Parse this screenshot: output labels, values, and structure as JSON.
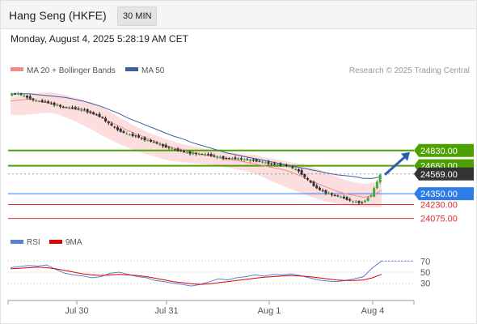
{
  "header": {
    "title": "Hang Seng (HKFE)",
    "interval": "30 MIN",
    "timestamp": "Monday, August 4, 2025 5:28:19 AM CET"
  },
  "chart_data": [
    {
      "type": "candlestick",
      "legend": [
        {
          "name": "MA 20 + Bollinger Bands",
          "color": "#f28b8b"
        },
        {
          "name": "MA 50",
          "color": "#3d5f9f"
        }
      ],
      "credit": "Research © 2025 Trading Central",
      "x_ticks": [
        "Jul 30",
        "Jul 31",
        "Aug 1",
        "Aug 4"
      ],
      "y_range": [
        24000,
        25620
      ],
      "close_path": [
        25450,
        25460,
        25420,
        25380,
        25370,
        25340,
        25310,
        25300,
        25290,
        25250,
        25210,
        25130,
        25060,
        25010,
        24990,
        24950,
        24920,
        24880,
        24850,
        24820,
        24800,
        24790,
        24780,
        24760,
        24740,
        24740,
        24730,
        24720,
        24700,
        24680,
        24670,
        24650,
        24600,
        24500,
        24410,
        24360,
        24330,
        24300,
        24260,
        24250,
        24330,
        24560
      ],
      "ma20": [
        25380,
        25390,
        25400,
        25380,
        25360,
        25340,
        25310,
        25290,
        25270,
        25240,
        25200,
        25150,
        25100,
        25050,
        25010,
        24970,
        24930,
        24890,
        24860,
        24830,
        24810,
        24790,
        24770,
        24750,
        24730,
        24720,
        24700,
        24680,
        24660,
        24640,
        24620,
        24590,
        24550,
        24500,
        24460,
        24420,
        24380,
        24350,
        24330,
        24310,
        24330,
        24390
      ],
      "bb_upper": [
        25420,
        25440,
        25460,
        25470,
        25480,
        25470,
        25450,
        25420,
        25390,
        25360,
        25320,
        25260,
        25200,
        25140,
        25090,
        25040,
        25000,
        24960,
        24930,
        24900,
        24880,
        24860,
        24840,
        24830,
        24810,
        24800,
        24790,
        24780,
        24760,
        24740,
        24720,
        24700,
        24680,
        24660,
        24620,
        24580,
        24540,
        24500,
        24480,
        24460,
        24470,
        24500
      ],
      "bb_lower": [
        25230,
        25220,
        25230,
        25240,
        25250,
        25240,
        25200,
        25160,
        25110,
        25060,
        25000,
        24950,
        24900,
        24860,
        24820,
        24790,
        24760,
        24730,
        24710,
        24700,
        24690,
        24680,
        24670,
        24660,
        24640,
        24620,
        24600,
        24570,
        24530,
        24480,
        24440,
        24400,
        24360,
        24320,
        24290,
        24260,
        24240,
        24230,
        24210,
        24200,
        24200,
        24200
      ],
      "ma50": [
        25460,
        25460,
        25460,
        25450,
        25440,
        25430,
        25420,
        25400,
        25380,
        25350,
        25320,
        25280,
        25240,
        25190,
        25150,
        25110,
        25070,
        25030,
        24990,
        24960,
        24920,
        24890,
        24860,
        24830,
        24800,
        24780,
        24760,
        24740,
        24720,
        24700,
        24680,
        24660,
        24640,
        24620,
        24600,
        24580,
        24560,
        24550,
        24540,
        24520,
        24520,
        24540
      ],
      "price_levels": [
        {
          "label": "24830.00",
          "value": 24830,
          "color": "#4ca000",
          "style": "box"
        },
        {
          "label": "24660.00",
          "value": 24660,
          "color": "#4ca000",
          "style": "box"
        },
        {
          "label": "24569.00",
          "value": 24569,
          "color": "#333333",
          "style": "current"
        },
        {
          "label": "24350.00",
          "value": 24350,
          "color": "#2d7de6",
          "style": "box"
        },
        {
          "label": "24230.00",
          "value": 24230,
          "color": "#e03030",
          "style": "text"
        },
        {
          "label": "24075.00",
          "value": 24075,
          "color": "#e03030",
          "style": "text"
        }
      ]
    },
    {
      "type": "line",
      "legend": [
        {
          "name": "RSI",
          "color": "#5b7fd6"
        },
        {
          "name": "9MA",
          "color": "#e00000"
        }
      ],
      "y_ticks": [
        70,
        50,
        30
      ],
      "y_range": [
        15,
        85
      ],
      "rsi": [
        58,
        60,
        62,
        61,
        63,
        55,
        48,
        45,
        43,
        40,
        42,
        48,
        50,
        46,
        42,
        40,
        35,
        33,
        30,
        28,
        25,
        28,
        33,
        38,
        36,
        40,
        42,
        45,
        43,
        46,
        45,
        47,
        44,
        40,
        36,
        34,
        33,
        35,
        38,
        42,
        58,
        70
      ],
      "ma9": [
        56,
        57,
        58,
        59,
        58,
        56,
        53,
        50,
        47,
        45,
        44,
        45,
        46,
        45,
        44,
        42,
        39,
        36,
        33,
        31,
        29,
        28,
        29,
        31,
        33,
        35,
        37,
        39,
        41,
        42,
        43,
        44,
        43,
        42,
        40,
        38,
        36,
        35,
        35,
        36,
        40,
        46
      ]
    }
  ]
}
